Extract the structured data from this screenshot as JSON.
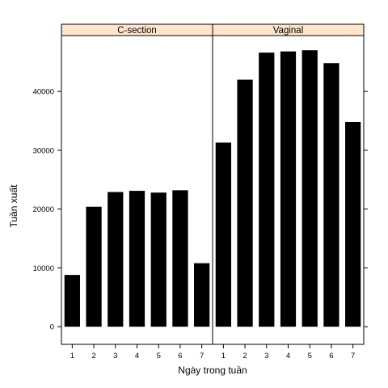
{
  "chart_data": {
    "type": "bar",
    "xlabel": "Ngày trong tuần",
    "ylabel": "Tuần xuất",
    "categories": [
      "1",
      "2",
      "3",
      "4",
      "5",
      "6",
      "7"
    ],
    "yticks": [
      0,
      10000,
      20000,
      30000,
      40000
    ],
    "ylim": [
      -3000,
      49500
    ],
    "grid": false,
    "panels": [
      {
        "name": "C-section",
        "values": [
          8800,
          20400,
          22900,
          23100,
          22800,
          23200,
          10800
        ]
      },
      {
        "name": "Vaginal",
        "values": [
          31300,
          42000,
          46600,
          46800,
          47000,
          44800,
          34800
        ]
      }
    ],
    "colors": {
      "bar": "#000000",
      "strip": "#ffe5cc",
      "frame": "#000000"
    }
  }
}
